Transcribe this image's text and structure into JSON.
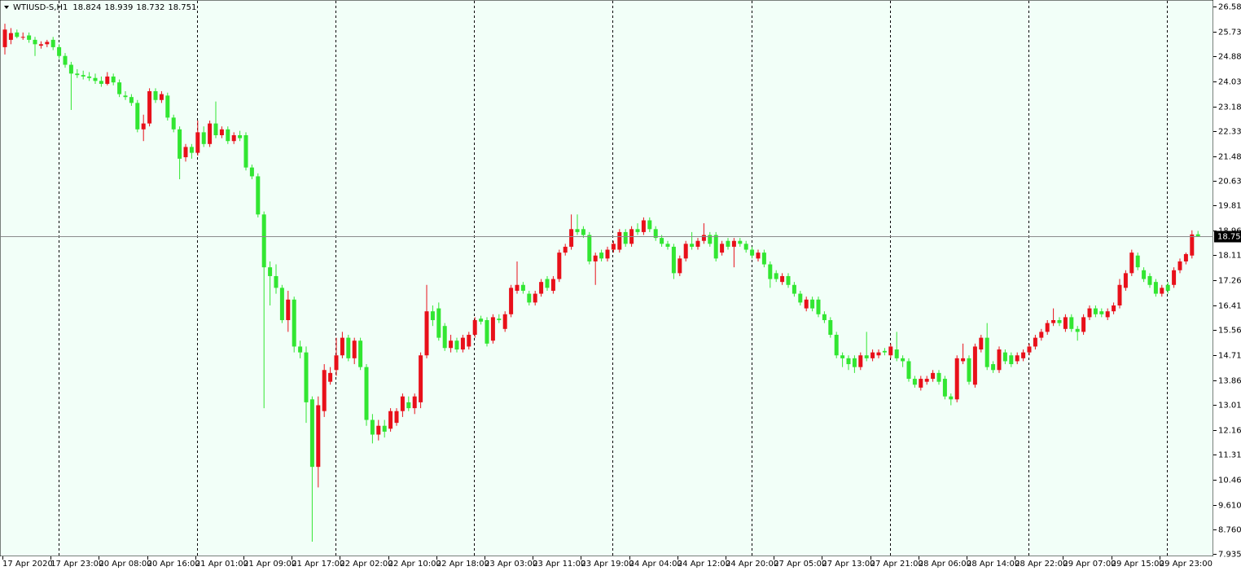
{
  "chart_data": {
    "type": "candlestick",
    "symbol": "WTIUSD-S,H1",
    "up_color": "#e8101a",
    "down_color": "#32e632",
    "background": "#f2fff8",
    "ylim": [
      7.935,
      26.585
    ],
    "yticks": [
      {
        "value": 26.585,
        "label": "26.585"
      },
      {
        "value": 25.735,
        "label": "25.735"
      },
      {
        "value": 24.885,
        "label": "24.885"
      },
      {
        "value": 24.035,
        "label": "24.035"
      },
      {
        "value": 23.185,
        "label": "23.185"
      },
      {
        "value": 22.335,
        "label": "22.335"
      },
      {
        "value": 21.485,
        "label": "21.485"
      },
      {
        "value": 20.635,
        "label": "20.635"
      },
      {
        "value": 19.81,
        "label": "19.810"
      },
      {
        "value": 18.96,
        "label": "18.960"
      },
      {
        "value": 18.11,
        "label": "18.110"
      },
      {
        "value": 17.26,
        "label": "17.260"
      },
      {
        "value": 16.41,
        "label": "16.410"
      },
      {
        "value": 15.56,
        "label": "15.560"
      },
      {
        "value": 14.71,
        "label": "14.710"
      },
      {
        "value": 13.86,
        "label": "13.860"
      },
      {
        "value": 13.01,
        "label": "13.010"
      },
      {
        "value": 12.16,
        "label": "12.160"
      },
      {
        "value": 11.31,
        "label": "11.310"
      },
      {
        "value": 10.46,
        "label": "10.460"
      },
      {
        "value": 9.61,
        "label": "9.610"
      },
      {
        "value": 8.76,
        "label": "8.760"
      },
      {
        "value": 7.935,
        "label": "7.935"
      }
    ],
    "time_labels": [
      "17 Apr 2020",
      "17 Apr 23:00",
      "20 Apr 08:00",
      "20 Apr 16:00",
      "21 Apr 01:00",
      "21 Apr 09:00",
      "21 Apr 17:00",
      "22 Apr 02:00",
      "22 Apr 10:00",
      "22 Apr 18:00",
      "23 Apr 03:00",
      "23 Apr 11:00",
      "23 Apr 19:00",
      "24 Apr 04:00",
      "24 Apr 12:00",
      "24 Apr 20:00",
      "27 Apr 05:00",
      "27 Apr 13:00",
      "27 Apr 21:00",
      "28 Apr 06:00",
      "28 Apr 14:00",
      "28 Apr 22:00",
      "29 Apr 07:00",
      "29 Apr 15:00",
      "29 Apr 23:00"
    ],
    "ohlc": [
      [
        25.2,
        26.0,
        24.95,
        25.8
      ],
      [
        25.45,
        25.85,
        25.3,
        25.68
      ],
      [
        25.7,
        25.8,
        25.5,
        25.55
      ],
      [
        25.55,
        25.7,
        25.45,
        25.55
      ],
      [
        25.6,
        25.7,
        25.35,
        25.45
      ],
      [
        25.45,
        25.55,
        24.9,
        25.3
      ],
      [
        25.25,
        25.4,
        25.15,
        25.3
      ],
      [
        25.3,
        25.45,
        25.2,
        25.38
      ],
      [
        25.45,
        25.55,
        25.1,
        25.2
      ],
      [
        25.2,
        25.3,
        24.8,
        24.9
      ],
      [
        24.9,
        25.0,
        24.5,
        24.6
      ],
      [
        24.6,
        24.7,
        23.06,
        24.3
      ],
      [
        24.3,
        24.45,
        24.15,
        24.25
      ],
      [
        24.25,
        24.4,
        24.1,
        24.2
      ],
      [
        24.2,
        24.35,
        24.05,
        24.15
      ],
      [
        24.15,
        24.3,
        23.95,
        24.05
      ],
      [
        24.05,
        24.2,
        23.85,
        23.95
      ],
      [
        23.95,
        24.35,
        23.9,
        24.2
      ],
      [
        24.2,
        24.3,
        23.9,
        24.0
      ],
      [
        24.0,
        24.1,
        23.5,
        23.6
      ],
      [
        23.55,
        23.7,
        23.4,
        23.5
      ],
      [
        23.5,
        23.6,
        23.2,
        23.3
      ],
      [
        23.3,
        23.4,
        22.3,
        22.4
      ],
      [
        22.4,
        22.9,
        22.0,
        22.6
      ],
      [
        22.6,
        23.8,
        22.5,
        23.7
      ],
      [
        23.7,
        23.8,
        23.3,
        23.4
      ],
      [
        23.4,
        23.7,
        23.3,
        23.6
      ],
      [
        23.55,
        23.65,
        22.7,
        22.8
      ],
      [
        22.8,
        22.9,
        22.3,
        22.4
      ],
      [
        22.4,
        22.5,
        20.7,
        21.4
      ],
      [
        21.45,
        21.9,
        21.3,
        21.8
      ],
      [
        21.8,
        21.9,
        21.4,
        21.6
      ],
      [
        21.6,
        22.7,
        21.5,
        22.3
      ],
      [
        22.3,
        22.5,
        21.8,
        21.9
      ],
      [
        21.9,
        22.7,
        21.8,
        22.6
      ],
      [
        22.6,
        23.35,
        22.1,
        22.2
      ],
      [
        22.2,
        22.5,
        22.1,
        22.4
      ],
      [
        22.4,
        22.5,
        21.9,
        22.0
      ],
      [
        22.0,
        22.3,
        21.9,
        22.2
      ],
      [
        22.2,
        22.35,
        22.0,
        22.1
      ],
      [
        22.2,
        22.3,
        21.0,
        21.1
      ],
      [
        21.1,
        21.2,
        20.7,
        20.8
      ],
      [
        20.8,
        20.9,
        19.4,
        19.5
      ],
      [
        19.5,
        19.6,
        12.9,
        17.7
      ],
      [
        17.7,
        17.9,
        16.4,
        17.4
      ],
      [
        17.4,
        17.8,
        16.8,
        17.0
      ],
      [
        17.0,
        17.1,
        15.8,
        15.9
      ],
      [
        15.9,
        16.9,
        15.5,
        16.6
      ],
      [
        16.6,
        16.7,
        14.8,
        15.0
      ],
      [
        15.0,
        15.2,
        14.6,
        14.8
      ],
      [
        14.8,
        15.0,
        12.4,
        13.1
      ],
      [
        13.2,
        13.3,
        8.35,
        10.9
      ],
      [
        10.9,
        13.3,
        10.2,
        13.0
      ],
      [
        12.8,
        14.4,
        12.6,
        14.2
      ],
      [
        13.8,
        14.3,
        13.7,
        14.1
      ],
      [
        14.2,
        15.3,
        14.0,
        14.7
      ],
      [
        14.7,
        15.5,
        14.6,
        15.3
      ],
      [
        15.3,
        15.4,
        14.5,
        14.6
      ],
      [
        14.6,
        15.3,
        14.4,
        15.2
      ],
      [
        15.2,
        15.3,
        14.2,
        14.3
      ],
      [
        14.3,
        14.4,
        12.3,
        12.5
      ],
      [
        12.5,
        12.7,
        11.7,
        12.0
      ],
      [
        12.0,
        12.5,
        11.8,
        12.3
      ],
      [
        12.3,
        12.5,
        11.9,
        12.1
      ],
      [
        12.2,
        12.9,
        12.1,
        12.8
      ],
      [
        12.4,
        12.9,
        12.3,
        12.8
      ],
      [
        12.8,
        13.4,
        12.6,
        13.3
      ],
      [
        13.1,
        13.3,
        12.8,
        12.9
      ],
      [
        12.9,
        13.4,
        12.7,
        13.3
      ],
      [
        13.1,
        14.8,
        12.9,
        14.7
      ],
      [
        14.7,
        17.1,
        14.6,
        16.2
      ],
      [
        16.2,
        16.4,
        15.7,
        15.9
      ],
      [
        16.3,
        16.5,
        15.2,
        15.3
      ],
      [
        15.7,
        15.8,
        14.85,
        14.95
      ],
      [
        14.95,
        15.4,
        14.8,
        15.2
      ],
      [
        15.2,
        15.3,
        14.8,
        14.9
      ],
      [
        14.9,
        15.4,
        14.8,
        15.3
      ],
      [
        15.0,
        15.5,
        14.9,
        15.4
      ],
      [
        15.4,
        16.0,
        15.3,
        15.9
      ],
      [
        15.95,
        16.05,
        15.75,
        15.85
      ],
      [
        15.9,
        16.0,
        15.0,
        15.1
      ],
      [
        15.2,
        16.1,
        15.1,
        16.0
      ],
      [
        15.95,
        16.1,
        15.8,
        15.9
      ],
      [
        15.6,
        16.2,
        15.5,
        16.1
      ],
      [
        16.1,
        17.1,
        16.0,
        17.0
      ],
      [
        16.9,
        17.9,
        16.8,
        17.1
      ],
      [
        17.1,
        17.2,
        16.8,
        16.9
      ],
      [
        16.8,
        16.9,
        16.4,
        16.5
      ],
      [
        16.5,
        16.9,
        16.4,
        16.8
      ],
      [
        16.8,
        17.3,
        16.7,
        17.2
      ],
      [
        17.3,
        17.4,
        16.9,
        17.0
      ],
      [
        16.9,
        17.4,
        16.8,
        17.3
      ],
      [
        17.3,
        18.3,
        17.2,
        18.2
      ],
      [
        18.2,
        18.5,
        18.1,
        18.4
      ],
      [
        18.4,
        19.5,
        18.3,
        19.0
      ],
      [
        19.0,
        19.5,
        18.8,
        18.9
      ],
      [
        19.0,
        19.1,
        18.7,
        18.8
      ],
      [
        18.8,
        18.9,
        17.8,
        17.9
      ],
      [
        17.9,
        18.2,
        17.1,
        18.1
      ],
      [
        18.2,
        18.3,
        17.9,
        18.0
      ],
      [
        18.0,
        18.4,
        17.9,
        18.3
      ],
      [
        18.3,
        18.6,
        18.2,
        18.5
      ],
      [
        18.3,
        19.0,
        18.2,
        18.9
      ],
      [
        18.9,
        19.0,
        18.4,
        18.5
      ],
      [
        18.5,
        19.1,
        18.4,
        19.0
      ],
      [
        19.0,
        19.2,
        18.8,
        18.9
      ],
      [
        18.9,
        19.4,
        18.8,
        19.3
      ],
      [
        19.3,
        19.4,
        18.9,
        19.0
      ],
      [
        19.0,
        19.1,
        18.6,
        18.7
      ],
      [
        18.7,
        18.8,
        18.4,
        18.5
      ],
      [
        18.5,
        18.6,
        18.3,
        18.4
      ],
      [
        18.4,
        18.5,
        17.3,
        17.5
      ],
      [
        17.5,
        18.1,
        17.4,
        18.0
      ],
      [
        18.0,
        18.6,
        17.9,
        18.5
      ],
      [
        18.5,
        18.9,
        18.3,
        18.4
      ],
      [
        18.4,
        18.7,
        18.3,
        18.6
      ],
      [
        18.6,
        19.2,
        18.5,
        18.8
      ],
      [
        18.8,
        18.9,
        18.4,
        18.5
      ],
      [
        18.8,
        18.9,
        17.9,
        18.0
      ],
      [
        18.2,
        18.6,
        18.1,
        18.5
      ],
      [
        18.6,
        18.7,
        18.3,
        18.4
      ],
      [
        18.4,
        18.7,
        17.7,
        18.6
      ],
      [
        18.6,
        18.7,
        18.4,
        18.5
      ],
      [
        18.5,
        18.6,
        18.2,
        18.3
      ],
      [
        18.3,
        18.4,
        18.0,
        18.1
      ],
      [
        18.0,
        18.3,
        17.9,
        18.2
      ],
      [
        18.2,
        18.3,
        17.7,
        17.8
      ],
      [
        17.8,
        17.9,
        17.0,
        17.3
      ],
      [
        17.5,
        17.6,
        17.2,
        17.3
      ],
      [
        17.2,
        17.5,
        17.1,
        17.4
      ],
      [
        17.4,
        17.5,
        17.0,
        17.1
      ],
      [
        17.1,
        17.2,
        16.7,
        16.8
      ],
      [
        16.8,
        16.9,
        16.4,
        16.5
      ],
      [
        16.3,
        16.7,
        16.2,
        16.6
      ],
      [
        16.6,
        16.7,
        16.2,
        16.3
      ],
      [
        16.6,
        16.7,
        16.0,
        16.1
      ],
      [
        16.1,
        16.2,
        15.8,
        15.9
      ],
      [
        15.9,
        16.0,
        15.3,
        15.4
      ],
      [
        15.4,
        15.5,
        14.6,
        14.7
      ],
      [
        14.7,
        14.8,
        14.3,
        14.6
      ],
      [
        14.6,
        14.7,
        14.2,
        14.4
      ],
      [
        14.6,
        14.7,
        14.1,
        14.3
      ],
      [
        14.3,
        14.8,
        14.2,
        14.7
      ],
      [
        14.7,
        15.5,
        14.5,
        14.6
      ],
      [
        14.6,
        14.9,
        14.5,
        14.8
      ],
      [
        14.7,
        14.9,
        14.6,
        14.8
      ],
      [
        14.85,
        14.95,
        14.7,
        14.8
      ],
      [
        14.7,
        15.1,
        14.6,
        15.0
      ],
      [
        14.9,
        15.5,
        14.5,
        14.6
      ],
      [
        14.6,
        14.7,
        14.3,
        14.5
      ],
      [
        14.5,
        14.6,
        13.8,
        13.9
      ],
      [
        13.9,
        14.0,
        13.6,
        13.7
      ],
      [
        13.6,
        14.0,
        13.5,
        13.9
      ],
      [
        13.8,
        14.0,
        13.7,
        13.9
      ],
      [
        13.9,
        14.2,
        13.8,
        14.1
      ],
      [
        14.1,
        14.2,
        13.7,
        13.8
      ],
      [
        13.9,
        14.0,
        13.2,
        13.3
      ],
      [
        13.3,
        13.4,
        13.0,
        13.2
      ],
      [
        13.2,
        14.7,
        13.1,
        14.6
      ],
      [
        14.5,
        15.1,
        14.4,
        14.6
      ],
      [
        14.6,
        14.7,
        13.7,
        13.8
      ],
      [
        13.7,
        15.1,
        13.6,
        15.0
      ],
      [
        14.9,
        15.4,
        14.8,
        15.3
      ],
      [
        15.3,
        15.8,
        14.2,
        14.3
      ],
      [
        14.4,
        14.5,
        14.1,
        14.2
      ],
      [
        14.2,
        15.0,
        14.1,
        14.9
      ],
      [
        14.8,
        14.9,
        14.4,
        14.5
      ],
      [
        14.7,
        14.8,
        14.3,
        14.4
      ],
      [
        14.5,
        14.8,
        14.4,
        14.7
      ],
      [
        14.6,
        14.9,
        14.5,
        14.8
      ],
      [
        14.8,
        15.1,
        14.7,
        15.0
      ],
      [
        15.0,
        15.4,
        14.9,
        15.3
      ],
      [
        15.3,
        15.6,
        15.2,
        15.5
      ],
      [
        15.5,
        15.9,
        15.4,
        15.8
      ],
      [
        15.8,
        16.3,
        15.7,
        15.9
      ],
      [
        15.9,
        16.0,
        15.7,
        15.8
      ],
      [
        15.6,
        16.1,
        15.5,
        16.0
      ],
      [
        16.0,
        16.1,
        15.5,
        15.6
      ],
      [
        15.6,
        15.7,
        15.2,
        15.5
      ],
      [
        15.5,
        16.1,
        15.4,
        16.0
      ],
      [
        16.0,
        16.4,
        15.9,
        16.3
      ],
      [
        16.3,
        16.4,
        16.0,
        16.1
      ],
      [
        16.2,
        16.3,
        16.0,
        16.1
      ],
      [
        16.0,
        16.3,
        15.9,
        16.2
      ],
      [
        16.2,
        16.5,
        16.1,
        16.4
      ],
      [
        16.4,
        17.3,
        16.3,
        17.1
      ],
      [
        17.0,
        17.6,
        16.9,
        17.5
      ],
      [
        17.5,
        18.3,
        17.4,
        18.2
      ],
      [
        18.1,
        18.2,
        17.6,
        17.7
      ],
      [
        17.6,
        17.7,
        17.2,
        17.3
      ],
      [
        17.4,
        17.5,
        17.0,
        17.1
      ],
      [
        17.2,
        17.3,
        16.7,
        16.8
      ],
      [
        16.8,
        17.1,
        16.7,
        17.0
      ],
      [
        17.1,
        17.2,
        16.8,
        16.9
      ],
      [
        17.1,
        17.7,
        17.0,
        17.6
      ],
      [
        17.6,
        18.0,
        17.5,
        17.9
      ],
      [
        17.9,
        18.2,
        17.8,
        18.15
      ],
      [
        18.1,
        18.96,
        18.0,
        18.82
      ],
      [
        18.824,
        18.939,
        18.732,
        18.751
      ]
    ]
  }
}
